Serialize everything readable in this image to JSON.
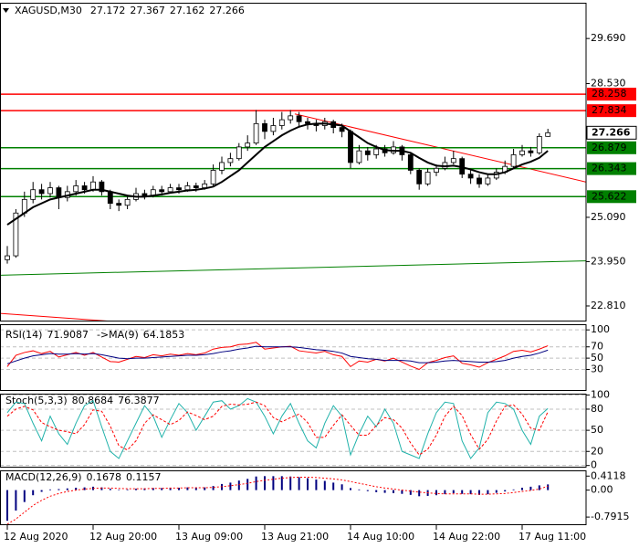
{
  "chart_data": [
    {
      "type": "candlestick",
      "title": "XAGUSD,M30",
      "open": [
        24.0,
        24.1,
        25.2,
        25.55,
        25.8,
        25.7,
        25.85,
        25.6,
        25.75,
        25.9,
        25.8,
        26.0,
        25.75,
        25.45,
        25.4,
        25.55,
        25.7,
        25.65,
        25.8,
        25.75,
        25.85,
        25.8,
        25.9,
        25.85,
        25.95,
        26.3,
        26.5,
        26.6,
        26.9,
        27.0,
        27.5,
        27.3,
        27.45,
        27.6,
        27.7,
        27.55,
        27.5,
        27.45,
        27.55,
        27.4,
        27.3,
        26.5,
        26.8,
        26.7,
        26.85,
        26.75,
        26.9,
        26.7,
        26.3,
        25.95,
        26.25,
        26.35,
        26.5,
        26.6,
        26.2,
        26.1,
        25.95,
        26.1,
        26.25,
        26.4,
        26.7,
        26.8,
        26.75,
        27.172
      ],
      "high": [
        24.35,
        25.3,
        25.75,
        26.0,
        25.95,
        26.0,
        25.9,
        25.9,
        26.05,
        26.0,
        26.15,
        26.05,
        25.8,
        25.55,
        25.65,
        25.85,
        25.8,
        25.9,
        25.9,
        25.95,
        25.95,
        26.0,
        25.98,
        26.05,
        26.45,
        26.65,
        26.75,
        27.0,
        27.2,
        27.85,
        27.6,
        27.65,
        27.8,
        27.85,
        27.8,
        27.65,
        27.6,
        27.65,
        27.6,
        27.5,
        27.35,
        26.95,
        26.9,
        26.95,
        26.95,
        27.05,
        26.95,
        26.75,
        26.35,
        26.35,
        26.45,
        26.65,
        26.8,
        26.65,
        26.3,
        26.2,
        26.2,
        26.35,
        26.55,
        26.85,
        26.95,
        26.9,
        27.25,
        27.367
      ],
      "low": [
        23.9,
        24.05,
        25.1,
        25.45,
        25.55,
        25.6,
        25.3,
        25.5,
        25.65,
        25.7,
        25.75,
        25.65,
        25.3,
        25.25,
        25.3,
        25.5,
        25.55,
        25.6,
        25.65,
        25.7,
        25.7,
        25.75,
        25.75,
        25.8,
        25.9,
        26.2,
        26.4,
        26.55,
        26.8,
        26.95,
        27.1,
        27.2,
        27.35,
        27.5,
        27.4,
        27.35,
        27.3,
        27.35,
        27.25,
        27.15,
        26.35,
        26.45,
        26.55,
        26.6,
        26.65,
        26.7,
        26.55,
        26.2,
        25.8,
        25.9,
        26.15,
        26.3,
        26.45,
        26.1,
        25.95,
        25.85,
        25.9,
        26.05,
        26.2,
        26.35,
        26.65,
        26.65,
        26.7,
        27.162
      ],
      "close": [
        24.1,
        25.2,
        25.55,
        25.8,
        25.7,
        25.85,
        25.6,
        25.75,
        25.9,
        25.8,
        26.0,
        25.75,
        25.45,
        25.4,
        25.55,
        25.7,
        25.65,
        25.8,
        25.75,
        25.85,
        25.8,
        25.9,
        25.85,
        25.95,
        26.3,
        26.5,
        26.6,
        26.9,
        27.0,
        27.5,
        27.3,
        27.45,
        27.6,
        27.7,
        27.55,
        27.5,
        27.45,
        27.55,
        27.4,
        27.3,
        26.5,
        26.8,
        26.7,
        26.85,
        26.75,
        26.9,
        26.7,
        26.3,
        25.95,
        26.25,
        26.35,
        26.5,
        26.6,
        26.2,
        26.1,
        25.95,
        26.1,
        26.25,
        26.4,
        26.7,
        26.8,
        26.75,
        27.17,
        27.266
      ],
      "bull_color": "#ffffff",
      "bear_color": "#000000",
      "series": [
        {
          "color": "#000000",
          "width": 2,
          "values": [
            24.9,
            25.05,
            25.2,
            25.35,
            25.45,
            25.55,
            25.6,
            25.65,
            25.7,
            25.75,
            25.8,
            25.8,
            25.75,
            25.7,
            25.65,
            25.62,
            25.62,
            25.65,
            25.68,
            25.72,
            25.75,
            25.78,
            25.8,
            25.83,
            25.88,
            26.0,
            26.15,
            26.3,
            26.5,
            26.7,
            26.9,
            27.05,
            27.2,
            27.32,
            27.42,
            27.48,
            27.5,
            27.5,
            27.48,
            27.45,
            27.3,
            27.15,
            27.0,
            26.9,
            26.82,
            26.8,
            26.8,
            26.75,
            26.62,
            26.5,
            26.42,
            26.4,
            26.42,
            26.38,
            26.32,
            26.25,
            26.2,
            26.2,
            26.25,
            26.35,
            26.45,
            26.52,
            26.62,
            26.8
          ]
        }
      ],
      "levels": [
        {
          "value": 28.258,
          "color": "#ff0000"
        },
        {
          "value": 27.834,
          "color": "#ff0000"
        },
        {
          "value": 26.879,
          "color": "#008000"
        },
        {
          "value": 26.343,
          "color": "#008000"
        },
        {
          "value": 25.622,
          "color": "#008000"
        }
      ],
      "trendlines": [
        {
          "color": "#ff0000",
          "points": [
            [
              33.5,
              27.75
            ],
            [
              67.4,
              26.0
            ]
          ]
        },
        {
          "color": "#008000",
          "points": [
            [
              -1,
              23.6
            ],
            [
              67.4,
              23.97
            ]
          ]
        },
        {
          "color": "#ff0000",
          "points": [
            [
              -1,
              22.62
            ],
            [
              12.4,
              22.41
            ]
          ]
        }
      ],
      "ylim": [
        22.41,
        30.61
      ],
      "yticks": [
        {
          "value": 29.69,
          "label": "29.690"
        },
        {
          "value": 28.53,
          "label": "28.530"
        },
        {
          "value": 25.09,
          "label": "25.090"
        },
        {
          "value": 23.95,
          "label": "23.950"
        },
        {
          "value": 22.81,
          "label": "22.810"
        }
      ],
      "grid": false,
      "x_labels": [
        {
          "index": 0,
          "label": "12 Aug 2020"
        },
        {
          "index": 10,
          "label": "12 Aug 20:00"
        },
        {
          "index": 20,
          "label": "13 Aug 09:00"
        },
        {
          "index": 30,
          "label": "13 Aug 21:00"
        },
        {
          "index": 40,
          "label": "14 Aug 10:00"
        },
        {
          "index": 50,
          "label": "14 Aug 22:00"
        },
        {
          "index": 60,
          "label": "17 Aug 11:00"
        }
      ]
    },
    {
      "type": "line",
      "label": "RSI(14)",
      "ma_label": "->MA(9)",
      "series": [
        {
          "color": "#ff0000",
          "width": 1,
          "values": [
            35,
            55,
            60,
            63,
            58,
            62,
            52,
            56,
            60,
            55,
            60,
            52,
            44,
            43,
            48,
            53,
            51,
            56,
            54,
            57,
            55,
            58,
            56,
            59,
            66,
            69,
            70,
            74,
            75,
            78,
            66,
            68,
            70,
            71,
            63,
            61,
            59,
            62,
            56,
            53,
            35,
            45,
            43,
            48,
            45,
            50,
            43,
            36,
            30,
            42,
            46,
            51,
            54,
            41,
            38,
            34,
            42,
            48,
            54,
            62,
            64,
            61,
            66,
            71.9087
          ]
        },
        {
          "color": "#000080",
          "width": 1,
          "values": [
            40,
            45,
            50,
            54,
            56,
            58,
            57,
            57,
            58,
            57,
            58,
            56,
            53,
            50,
            49,
            50,
            50,
            51,
            52,
            53,
            54,
            55,
            55,
            56,
            58,
            61,
            63,
            66,
            68,
            71,
            70,
            70,
            70,
            70,
            69,
            67,
            65,
            64,
            62,
            59,
            53,
            51,
            49,
            48,
            46,
            46,
            46,
            45,
            42,
            42,
            43,
            45,
            46,
            45,
            44,
            43,
            43,
            44,
            46,
            50,
            53,
            55,
            59,
            64.1853
          ]
        }
      ],
      "ylim": [
        -8,
        110
      ],
      "yticks": [
        100,
        70,
        50,
        30
      ],
      "grid": true
    },
    {
      "type": "line",
      "label": "Stoch(5,3,3)",
      "series": [
        {
          "color": "#20b2aa",
          "width": 1,
          "values": [
            75,
            90,
            88,
            60,
            35,
            70,
            45,
            30,
            60,
            85,
            92,
            55,
            20,
            10,
            35,
            60,
            85,
            70,
            40,
            65,
            88,
            75,
            50,
            70,
            90,
            92,
            80,
            85,
            95,
            90,
            70,
            45,
            70,
            88,
            60,
            35,
            25,
            60,
            85,
            70,
            15,
            45,
            70,
            55,
            80,
            60,
            20,
            15,
            10,
            45,
            75,
            90,
            88,
            35,
            10,
            25,
            75,
            90,
            88,
            80,
            50,
            30,
            70,
            80.8684
          ]
        },
        {
          "color": "#ff0000",
          "width": 1,
          "dash": "3,2",
          "values": [
            70,
            80,
            84,
            79,
            61,
            55,
            50,
            48,
            45,
            58,
            79,
            77,
            56,
            28,
            22,
            35,
            60,
            72,
            65,
            58,
            64,
            76,
            71,
            65,
            70,
            84,
            87,
            86,
            87,
            90,
            85,
            68,
            62,
            68,
            73,
            61,
            40,
            40,
            57,
            72,
            57,
            43,
            43,
            57,
            68,
            65,
            53,
            32,
            15,
            23,
            43,
            70,
            84,
            71,
            44,
            23,
            37,
            63,
            84,
            86,
            73,
            53,
            50,
            76.3877
          ]
        }
      ],
      "ylim": [
        -3,
        102
      ],
      "yticks": [
        100,
        80,
        50,
        20,
        0
      ],
      "grid": true
    },
    {
      "type": "bar",
      "label": "MACD(12,26,9)",
      "color": "#000080",
      "values": [
        -0.9,
        -0.6,
        -0.35,
        -0.15,
        -0.05,
        0.02,
        0.03,
        0.05,
        0.07,
        0.08,
        0.1,
        0.08,
        0.04,
        0.01,
        0.02,
        0.04,
        0.05,
        0.06,
        0.06,
        0.07,
        0.07,
        0.08,
        0.08,
        0.08,
        0.12,
        0.18,
        0.22,
        0.28,
        0.33,
        0.4,
        0.41,
        0.41,
        0.41,
        0.4,
        0.38,
        0.35,
        0.31,
        0.27,
        0.22,
        0.17,
        0.06,
        0.02,
        -0.03,
        -0.06,
        -0.08,
        -0.09,
        -0.11,
        -0.14,
        -0.18,
        -0.17,
        -0.15,
        -0.12,
        -0.09,
        -0.11,
        -0.12,
        -0.14,
        -0.12,
        -0.08,
        -0.04,
        0.02,
        0.07,
        0.1,
        0.14,
        0.1678
      ],
      "series": [
        {
          "color": "#ff0000",
          "width": 1,
          "dash": "2,2",
          "values": [
            -1.0,
            -0.85,
            -0.65,
            -0.45,
            -0.3,
            -0.18,
            -0.1,
            -0.04,
            0.0,
            0.03,
            0.05,
            0.06,
            0.06,
            0.05,
            0.04,
            0.04,
            0.04,
            0.05,
            0.05,
            0.06,
            0.06,
            0.07,
            0.07,
            0.07,
            0.08,
            0.1,
            0.13,
            0.16,
            0.2,
            0.25,
            0.29,
            0.32,
            0.35,
            0.37,
            0.38,
            0.38,
            0.37,
            0.35,
            0.33,
            0.3,
            0.25,
            0.2,
            0.15,
            0.1,
            0.06,
            0.03,
            0.0,
            -0.03,
            -0.06,
            -0.08,
            -0.1,
            -0.11,
            -0.11,
            -0.11,
            -0.11,
            -0.12,
            -0.12,
            -0.11,
            -0.1,
            -0.07,
            -0.04,
            -0.01,
            0.03,
            0.1157
          ]
        }
      ],
      "ylim": [
        -1.03,
        0.58
      ],
      "yticks": [
        {
          "value": 0.4118,
          "label": "0.4118"
        },
        {
          "value": 0,
          "label": "0.00"
        },
        {
          "value": -0.7915,
          "label": "-0.7915"
        }
      ],
      "grid": false
    }
  ]
}
